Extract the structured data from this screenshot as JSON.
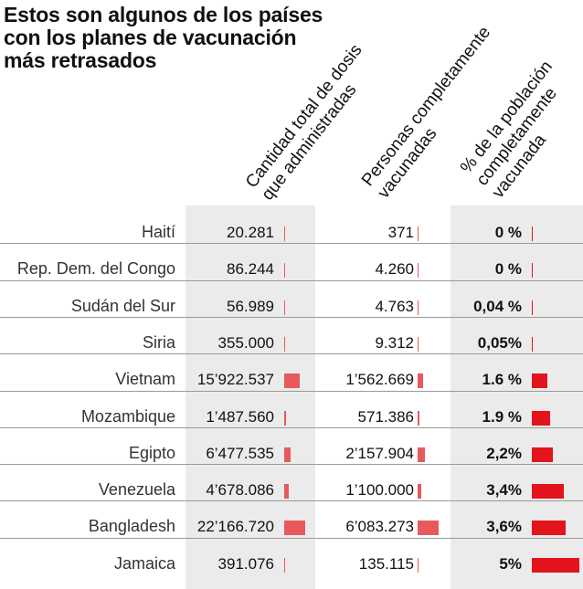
{
  "title": "Estos son algunos de los países con los planes de vacunación más retrasados",
  "columns": {
    "doses": [
      "Cantidad total de dosis",
      "que administradas"
    ],
    "people": [
      "Personas completamente",
      "vacunadas"
    ],
    "pct": [
      "% de la población",
      "completamente",
      "vacunada"
    ]
  },
  "colors": {
    "doses_bar": "#e8595c",
    "people_bar": "#e8595c",
    "pct_bar": "#e3141b",
    "shade": "#ebebeb"
  },
  "chart_data": {
    "type": "table",
    "series": [
      {
        "name": "Cantidad total de dosis que administradas",
        "values": [
          20281,
          86244,
          56989,
          355000,
          15922537,
          1487560,
          6477535,
          4678086,
          22166720,
          391076
        ]
      },
      {
        "name": "Personas completamente vacunadas",
        "values": [
          371,
          4260,
          4763,
          9312,
          1562669,
          571386,
          2157904,
          1100000,
          6083273,
          135115
        ]
      },
      {
        "name": "% de la población completamente vacunada",
        "values": [
          0,
          0,
          0.04,
          0.05,
          1.6,
          1.9,
          2.2,
          3.4,
          3.6,
          5
        ]
      }
    ],
    "rows": [
      {
        "country": "Haití",
        "doses": "20.281",
        "people": "371",
        "pct": "0 %"
      },
      {
        "country": "Rep. Dem. del Congo",
        "doses": "86.244",
        "people": "4.260",
        "pct": "0 %"
      },
      {
        "country": "Sudán del Sur",
        "doses": "56.989",
        "people": "4.763",
        "pct": "0,04 %"
      },
      {
        "country": "Siria",
        "doses": "355.000",
        "people": "9.312",
        "pct": "0,05%"
      },
      {
        "country": "Vietnam",
        "doses": "15’922.537",
        "people": "1’562.669",
        "pct": "1.6 %"
      },
      {
        "country": "Mozambique",
        "doses": "1’487.560",
        "people": "571.386",
        "pct": "1.9 %"
      },
      {
        "country": "Egipto",
        "doses": "6’477.535",
        "people": "2’157.904",
        "pct": "2,2%"
      },
      {
        "country": "Venezuela",
        "doses": "4’678.086",
        "people": "1’100.000",
        "pct": "3,4%"
      },
      {
        "country": "Bangladesh",
        "doses": "22’166.720",
        "people": "6’083.273",
        "pct": "3,6%"
      },
      {
        "country": "Jamaica",
        "doses": "391.076",
        "people": "135.115",
        "pct": "5%"
      }
    ]
  }
}
